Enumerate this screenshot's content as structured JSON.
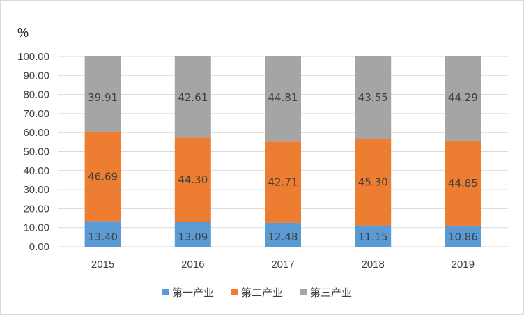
{
  "chart_data": {
    "type": "bar",
    "stacked": true,
    "unit_label": "%",
    "categories": [
      "2015",
      "2016",
      "2017",
      "2018",
      "2019"
    ],
    "series": [
      {
        "name": "第一产业",
        "color": "#5b9bd5",
        "values": [
          13.4,
          13.09,
          12.48,
          11.15,
          10.86
        ]
      },
      {
        "name": "第二产业",
        "color": "#ed7d31",
        "values": [
          46.69,
          44.3,
          42.71,
          45.3,
          44.85
        ]
      },
      {
        "name": "第三产业",
        "color": "#a5a5a5",
        "values": [
          39.91,
          42.61,
          44.81,
          43.55,
          44.29
        ]
      }
    ],
    "ylim": [
      0,
      100
    ],
    "yticks": [
      "0.00",
      "10.00",
      "20.00",
      "30.00",
      "40.00",
      "50.00",
      "60.00",
      "70.00",
      "80.00",
      "90.00",
      "100.00"
    ],
    "grid": true,
    "legend_position": "bottom"
  }
}
